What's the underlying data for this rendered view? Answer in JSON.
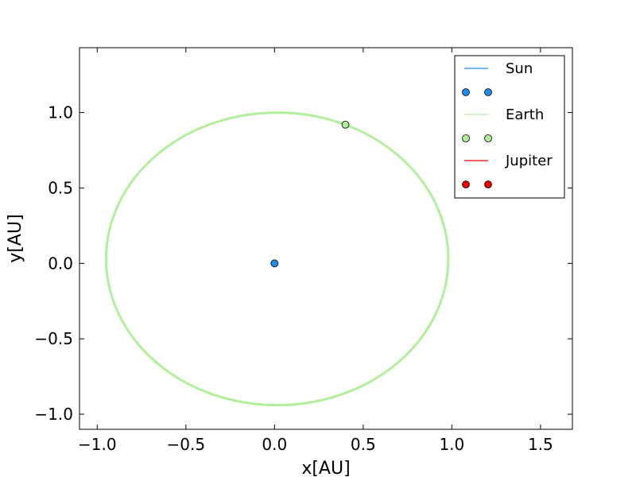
{
  "chart_data": {
    "type": "line",
    "title": "",
    "xlabel": "x[AU]",
    "ylabel": "y[AU]",
    "xlim": [
      -1.1,
      1.68
    ],
    "ylim": [
      -1.1,
      1.43
    ],
    "xticks": [
      -1.0,
      -0.5,
      0.0,
      0.5,
      1.0,
      1.5
    ],
    "xtick_labels": [
      "−1.0",
      "−0.5",
      "0.0",
      "0.5",
      "1.0",
      "1.5"
    ],
    "yticks": [
      -1.0,
      -0.5,
      0.0,
      0.5,
      1.0
    ],
    "ytick_labels": [
      "−1.0",
      "−0.5",
      "0.0",
      "0.5",
      "1.0"
    ],
    "grid": false,
    "legend_position": "top-right",
    "series": [
      {
        "name": "Sun",
        "kind": "orbit",
        "color": "#1f8ee6",
        "orbit": {
          "center": [
            0.0,
            0.0
          ],
          "semi_axes": [
            0.0,
            0.0
          ]
        },
        "current": [
          0.0,
          0.0
        ]
      },
      {
        "name": "Earth",
        "kind": "orbit",
        "color": "#b2ef9b",
        "orbit": {
          "center": [
            0.015,
            0.03
          ],
          "semi_axes": [
            0.965,
            0.97
          ]
        },
        "current": [
          0.4,
          0.92
        ]
      },
      {
        "name": "Jupiter",
        "kind": "orbit",
        "color": "#e60000",
        "orbit": null,
        "current": null
      }
    ]
  }
}
